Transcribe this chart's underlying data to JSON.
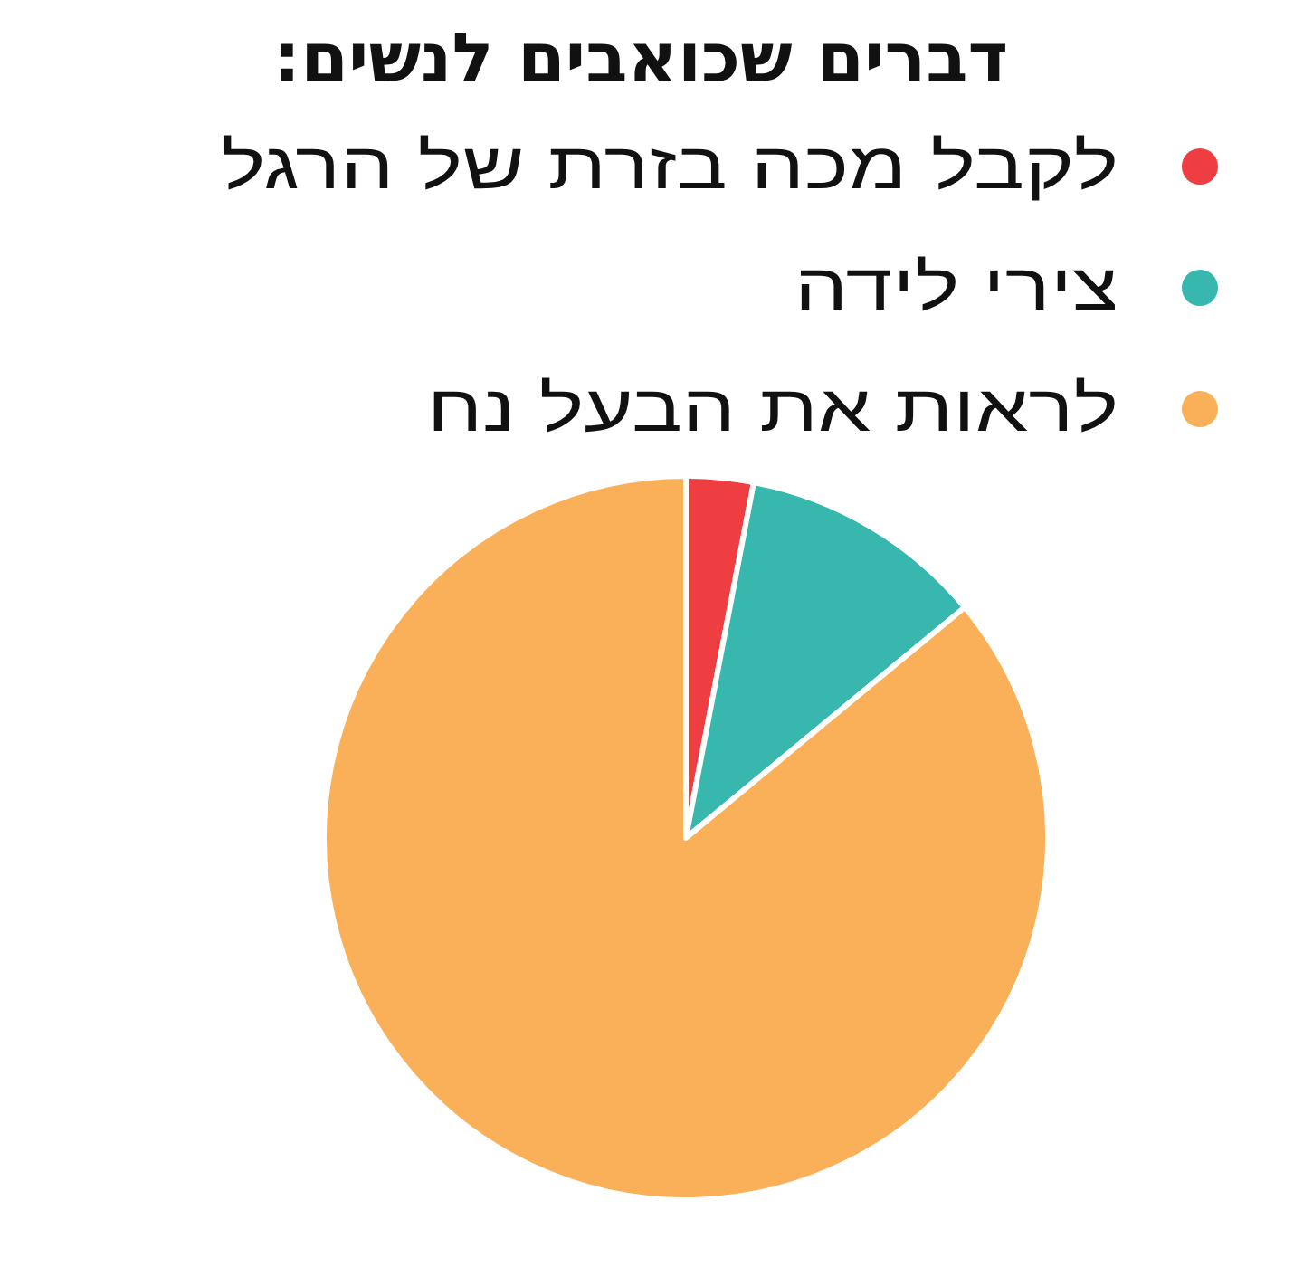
{
  "chart_data": {
    "type": "pie",
    "title": "דברים שכואבים לנשים:",
    "categories": [
      "לקבל מכה בזרת של הרגל",
      "צירי לידה",
      "לראות את הבעל נח"
    ],
    "values": [
      3,
      11,
      86
    ],
    "colors": [
      "#ee3e42",
      "#37b7ae",
      "#f9b058"
    ],
    "legend": "top"
  }
}
